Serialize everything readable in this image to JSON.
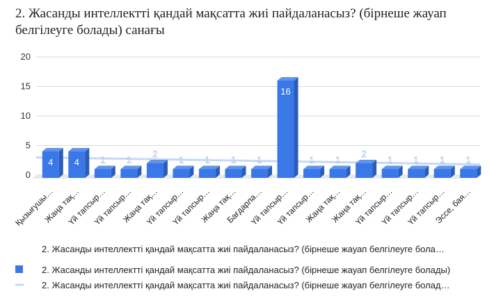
{
  "chart_data": {
    "type": "bar",
    "title": "2. Жасанды интеллектті қандай мақсатта жиі пайдаланасыз? (бірнеше жауап белгілеуге болады) санағы",
    "xlabel": "2. Жасанды интеллектті қандай мақсатта жиі пайдаланасыз? (бірнеше жауап белгілеуге бола…",
    "ylabel": "",
    "ylim": [
      0,
      20
    ],
    "yticks": [
      0,
      5,
      10,
      15,
      20
    ],
    "grid": true,
    "categories": [
      "Қызығушы…",
      "Жаңа тақ…",
      "Үй тапсыр…",
      "Үй тапсыр…",
      "Жаңа тақ…",
      "Үй тапсыр…",
      "Үй тапсыр…",
      "Жаңа тақ…",
      "Бағдарла…",
      "Үй тапсыр…",
      "Үй тапсыр…",
      "Жаңа тақ…",
      "Жаңа тақ…",
      "Үй тапсыр…",
      "Үй тапсыр…",
      "Үй тапсыр…",
      "Эссе, бая…"
    ],
    "series": [
      {
        "name": "2. Жасанды интеллектті қандай мақсатта жиі пайдаланасыз? (бірнеше жауап белгілеуге болады)",
        "type": "bar",
        "color": "#3b78e7",
        "values": [
          4,
          4,
          1,
          1,
          2,
          1,
          1,
          1,
          1,
          16,
          1,
          1,
          2,
          1,
          1,
          1,
          1
        ]
      },
      {
        "name": "2. Жасанды интеллектті қандай мақсатта жиі пайдаланасыз? (бірнеше жауап белгілеуге болад…",
        "type": "trendline",
        "color": "#c6d8f7",
        "start": 3.0,
        "end": 1.8
      }
    ],
    "legend_position": "bottom"
  }
}
